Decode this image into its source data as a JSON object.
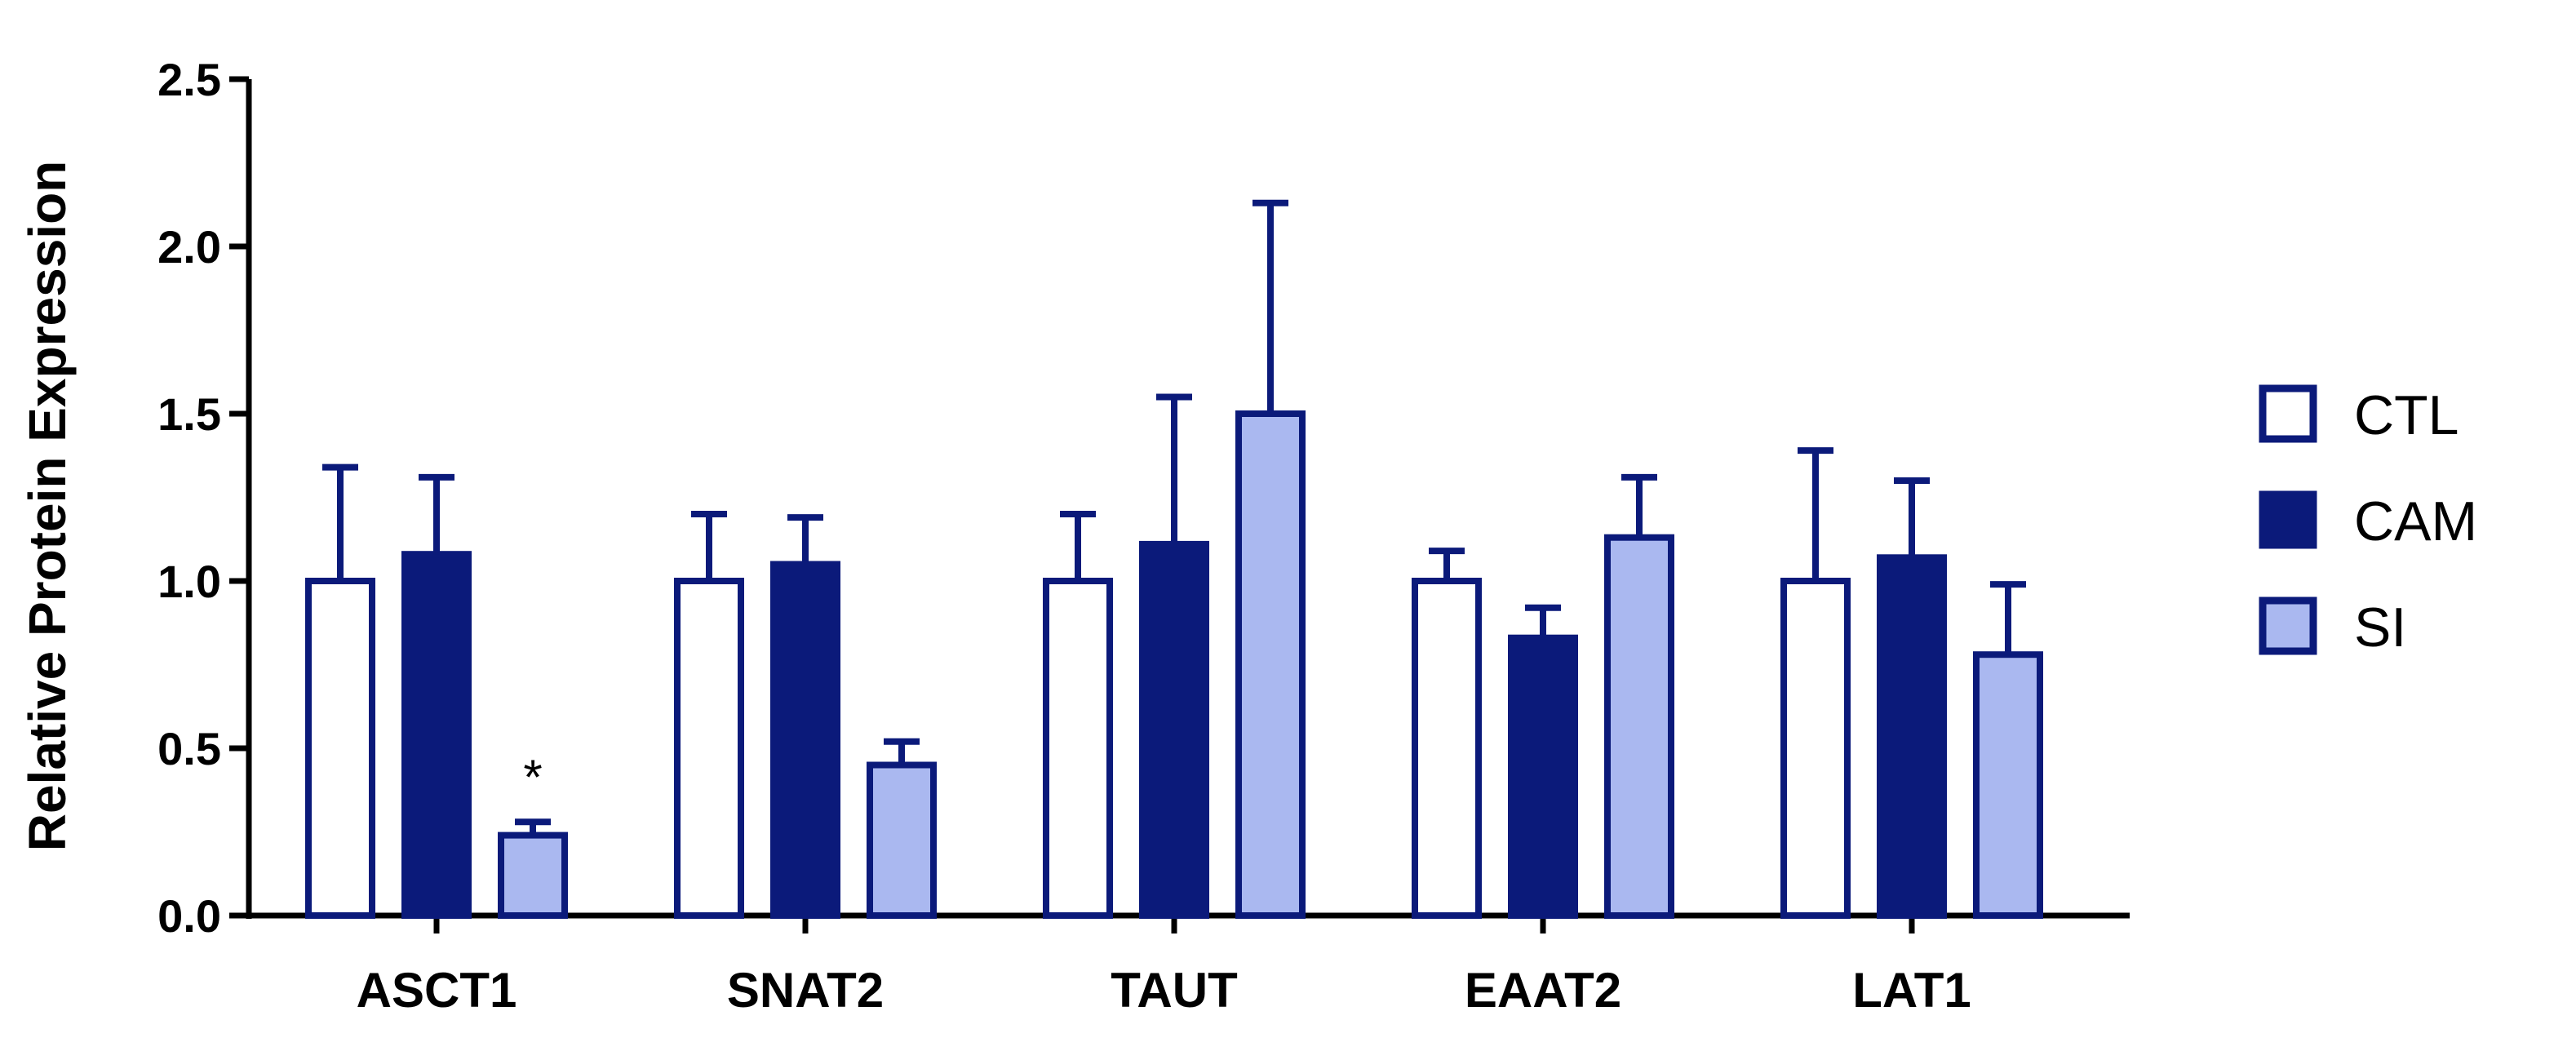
{
  "chart_data": {
    "type": "bar",
    "title": "",
    "xlabel": "",
    "ylabel": "Relative Protein Expression",
    "ylim": [
      0,
      2.5
    ],
    "yticks": [
      "0.0",
      "0.5",
      "1.0",
      "1.5",
      "2.0",
      "2.5"
    ],
    "categories": [
      "ASCT1",
      "SNAT2",
      "TAUT",
      "EAAT2",
      "LAT1"
    ],
    "series": [
      {
        "name": "CTL",
        "values": [
          1.0,
          1.0,
          1.0,
          1.0,
          1.0
        ],
        "errors": [
          0.34,
          0.2,
          0.2,
          0.09,
          0.39
        ],
        "fill": "#ffffff",
        "stroke": "#0b1a7a"
      },
      {
        "name": "CAM",
        "values": [
          1.08,
          1.05,
          1.11,
          0.83,
          1.07
        ],
        "errors": [
          0.23,
          0.14,
          0.44,
          0.09,
          0.23
        ],
        "fill": "#0b1a7a",
        "stroke": "#0b1a7a"
      },
      {
        "name": "SI",
        "values": [
          0.24,
          0.45,
          1.5,
          1.13,
          0.78
        ],
        "errors": [
          0.04,
          0.07,
          0.63,
          0.18,
          0.21
        ],
        "fill": "#aab8f0",
        "stroke": "#0b1a7a"
      }
    ],
    "annotations": [
      {
        "category": "ASCT1",
        "series": "SI",
        "text": "*"
      }
    ],
    "legend_position": "right",
    "grid": false
  }
}
